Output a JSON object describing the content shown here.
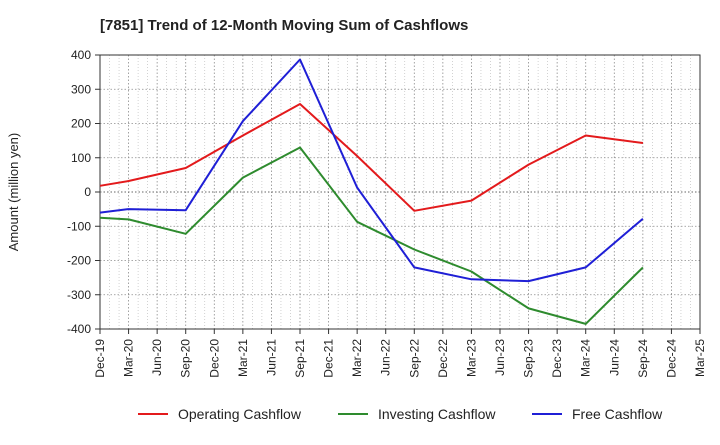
{
  "chart_data": {
    "type": "line",
    "title": "[7851]  Trend of 12-Month Moving Sum of Cashflows",
    "xlabel": "",
    "ylabel": "Amount (million yen)",
    "ylim": [
      -400,
      400
    ],
    "yticks": [
      -400,
      -300,
      -200,
      -100,
      0,
      100,
      200,
      300,
      400
    ],
    "x_ticks": [
      "Dec-19",
      "Mar-20",
      "Jun-20",
      "Sep-20",
      "Dec-20",
      "Mar-21",
      "Jun-21",
      "Sep-21",
      "Dec-21",
      "Mar-22",
      "Jun-22",
      "Sep-22",
      "Dec-22",
      "Mar-23",
      "Jun-23",
      "Sep-23",
      "Dec-23",
      "Mar-24",
      "Jun-24",
      "Sep-24",
      "Dec-24",
      "Mar-25"
    ],
    "grid": true,
    "legend_position": "bottom",
    "series": [
      {
        "name": "Operating Cashflow",
        "color": "#e31a1c",
        "x": [
          "Dec-19",
          "Mar-20",
          "Sep-20",
          "Mar-21",
          "Sep-21",
          "Mar-22",
          "Sep-22",
          "Mar-23",
          "Sep-23",
          "Mar-24",
          "Sep-24"
        ],
        "values": [
          18,
          32,
          70,
          165,
          257,
          105,
          -55,
          -25,
          80,
          165,
          143
        ]
      },
      {
        "name": "Investing Cashflow",
        "color": "#2e8b2e",
        "x": [
          "Dec-19",
          "Mar-20",
          "Sep-20",
          "Mar-21",
          "Sep-21",
          "Mar-22",
          "Sep-22",
          "Mar-23",
          "Sep-23",
          "Mar-24",
          "Sep-24"
        ],
        "values": [
          -75,
          -80,
          -122,
          42,
          130,
          -87,
          -168,
          -232,
          -340,
          -385,
          -220
        ]
      },
      {
        "name": "Free Cashflow",
        "color": "#1f1fd6",
        "x": [
          "Dec-19",
          "Mar-20",
          "Sep-20",
          "Mar-21",
          "Sep-21",
          "Mar-22",
          "Sep-22",
          "Mar-23",
          "Sep-23",
          "Mar-24",
          "Sep-24"
        ],
        "values": [
          -60,
          -50,
          -53,
          207,
          387,
          13,
          -220,
          -255,
          -260,
          -220,
          -78
        ]
      }
    ]
  }
}
